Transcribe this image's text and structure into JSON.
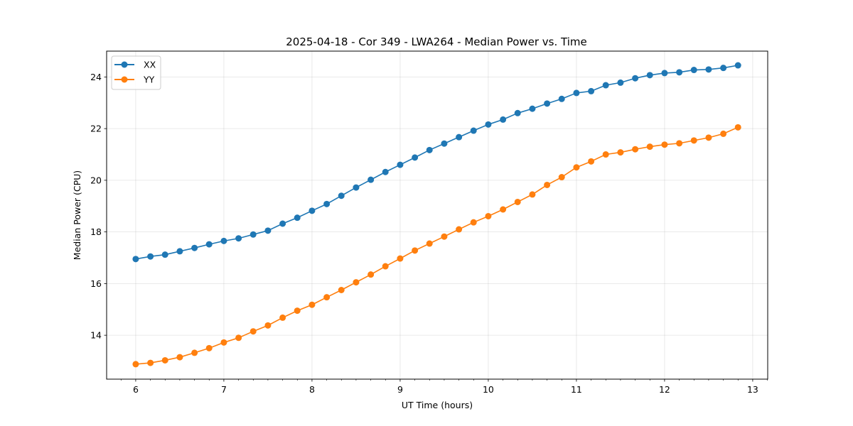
{
  "chart_data": {
    "type": "line",
    "title": "2025-04-18 - Cor 349 - LWA264 - Median Power vs. Time",
    "xlabel": "UT Time (hours)",
    "ylabel": "Median Power (CPU)",
    "xlim": [
      5.67,
      13.17
    ],
    "ylim": [
      12.3,
      25.0
    ],
    "xticks": [
      6,
      7,
      8,
      9,
      10,
      11,
      12,
      13
    ],
    "yticks": [
      14,
      16,
      18,
      20,
      22,
      24
    ],
    "grid": true,
    "legend_position": "top-left",
    "x": [
      6.0,
      6.167,
      6.333,
      6.5,
      6.667,
      6.833,
      7.0,
      7.167,
      7.333,
      7.5,
      7.667,
      7.833,
      8.0,
      8.167,
      8.333,
      8.5,
      8.667,
      8.833,
      9.0,
      9.167,
      9.333,
      9.5,
      9.667,
      9.833,
      10.0,
      10.167,
      10.333,
      10.5,
      10.667,
      10.833,
      11.0,
      11.167,
      11.333,
      11.5,
      11.667,
      11.833,
      12.0,
      12.167,
      12.333,
      12.5,
      12.667,
      12.833
    ],
    "series": [
      {
        "name": "XX",
        "color": "#1f77b4",
        "values": [
          16.95,
          17.05,
          17.12,
          17.25,
          17.38,
          17.52,
          17.65,
          17.75,
          17.9,
          18.05,
          18.32,
          18.55,
          18.82,
          19.08,
          19.4,
          19.72,
          20.02,
          20.32,
          20.6,
          20.88,
          21.17,
          21.42,
          21.67,
          21.92,
          22.16,
          22.35,
          22.6,
          22.77,
          22.97,
          23.15,
          23.38,
          23.45,
          23.68,
          23.78,
          23.95,
          24.07,
          24.15,
          24.18,
          24.27,
          24.29,
          24.35,
          24.45
        ]
      },
      {
        "name": "YY",
        "color": "#ff7f0e",
        "values": [
          12.88,
          12.93,
          13.03,
          13.15,
          13.32,
          13.5,
          13.72,
          13.9,
          14.15,
          14.38,
          14.68,
          14.95,
          15.18,
          15.47,
          15.75,
          16.05,
          16.35,
          16.67,
          16.97,
          17.28,
          17.55,
          17.82,
          18.1,
          18.37,
          18.61,
          18.87,
          19.16,
          19.45,
          19.82,
          20.12,
          20.5,
          20.73,
          21.0,
          21.08,
          21.2,
          21.3,
          21.38,
          21.43,
          21.54,
          21.65,
          21.8,
          22.05
        ]
      }
    ]
  }
}
